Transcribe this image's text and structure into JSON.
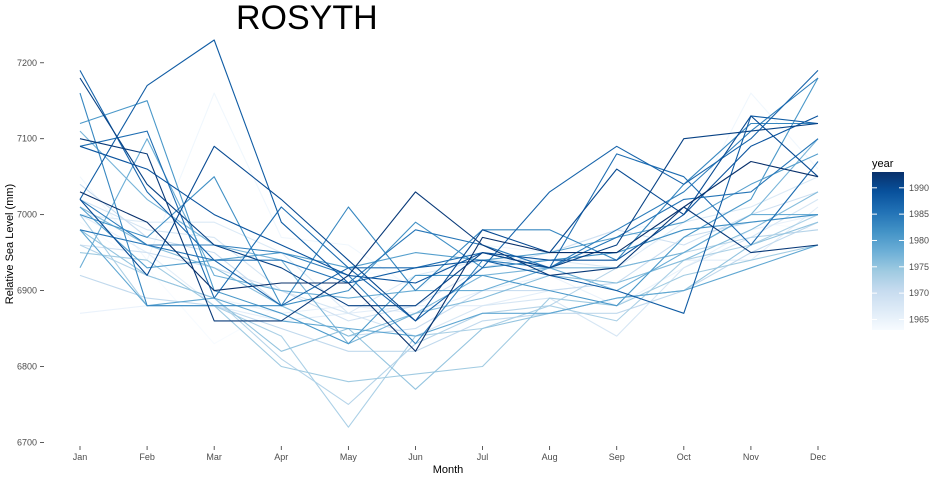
{
  "chart_data": {
    "type": "line",
    "title": "ROSYTH",
    "xlabel": "Month",
    "ylabel": "Relative Sea Level (mm)",
    "categories": [
      "Jan",
      "Feb",
      "Mar",
      "Apr",
      "May",
      "Jun",
      "Jul",
      "Aug",
      "Sep",
      "Oct",
      "Nov",
      "Dec"
    ],
    "yticks": [
      6700,
      6800,
      6900,
      7000,
      7100,
      7200
    ],
    "ylim": [
      6690,
      7230
    ],
    "grid": false,
    "legend": {
      "title": "year",
      "position": "right",
      "type": "continuous-colorbar",
      "ticks": [
        1965,
        1970,
        1975,
        1980,
        1985,
        1990
      ],
      "range": [
        1963,
        1993
      ],
      "low_color": "#f7fbff",
      "high_color": "#08306b"
    },
    "colors": [
      "#f7fbff",
      "#deebf7",
      "#c6dbef",
      "#9ecae1",
      "#6baed6",
      "#4292c6",
      "#2171b5",
      "#08519c",
      "#08306b"
    ],
    "series": [
      {
        "year": 1963,
        "values": [
          6990,
          6930,
          6830,
          6880,
          6930,
          6910,
          6940,
          6930,
          6940,
          6980,
          6990,
          6980
        ]
      },
      {
        "year": 1964,
        "values": [
          7050,
          6940,
          7160,
          6970,
          6960,
          6900,
          6960,
          6950,
          6980,
          6990,
          7160,
          7060
        ]
      },
      {
        "year": 1965,
        "values": [
          6870,
          6880,
          6890,
          6870,
          6880,
          6870,
          6900,
          6920,
          6880,
          6930,
          6980,
          7000
        ]
      },
      {
        "year": 1966,
        "values": [
          7000,
          6950,
          6880,
          6860,
          6870,
          6880,
          6880,
          6900,
          6910,
          6940,
          6940,
          7010
        ]
      },
      {
        "year": 1967,
        "values": [
          7000,
          6990,
          6990,
          6950,
          6870,
          6920,
          6940,
          6940,
          6930,
          6990,
          7010,
          7050
        ]
      },
      {
        "year": 1968,
        "values": [
          7020,
          6980,
          6970,
          6900,
          6870,
          6840,
          6880,
          6890,
          6840,
          6930,
          6970,
          7020
        ]
      },
      {
        "year": 1969,
        "values": [
          6960,
          6950,
          6930,
          6900,
          6860,
          6880,
          6930,
          6950,
          6980,
          6960,
          7000,
          7030
        ]
      },
      {
        "year": 1970,
        "values": [
          7040,
          6970,
          6950,
          6880,
          6840,
          6850,
          6900,
          6900,
          6910,
          6970,
          6990,
          7000
        ]
      },
      {
        "year": 1971,
        "values": [
          6920,
          6890,
          6880,
          6850,
          6820,
          6820,
          6860,
          6870,
          6870,
          6900,
          6950,
          6990
        ]
      },
      {
        "year": 1972,
        "values": [
          6960,
          6920,
          6890,
          6810,
          6750,
          6830,
          6870,
          6880,
          6930,
          6950,
          6970,
          6980
        ]
      },
      {
        "year": 1973,
        "values": [
          7000,
          6880,
          6880,
          6840,
          6720,
          6840,
          6850,
          6880,
          6860,
          6940,
          6960,
          7000
        ]
      },
      {
        "year": 1974,
        "values": [
          6950,
          6940,
          6880,
          6800,
          6780,
          6790,
          6800,
          6890,
          6880,
          6920,
          6940,
          6960
        ]
      },
      {
        "year": 1975,
        "values": [
          6980,
          6920,
          6890,
          6820,
          6850,
          6770,
          6850,
          6870,
          6890,
          6900,
          6960,
          6990
        ]
      },
      {
        "year": 1976,
        "values": [
          7010,
          6960,
          6930,
          6880,
          6840,
          6870,
          6890,
          6920,
          6910,
          6940,
          6980,
          7030
        ]
      },
      {
        "year": 1977,
        "values": [
          7110,
          7020,
          6960,
          6940,
          6830,
          6870,
          6920,
          6930,
          6930,
          6950,
          7000,
          7100
        ]
      },
      {
        "year": 1978,
        "values": [
          6930,
          7100,
          6920,
          6900,
          6890,
          6900,
          6900,
          6930,
          6900,
          6950,
          7000,
          7000
        ]
      },
      {
        "year": 1979,
        "values": [
          6980,
          6880,
          6890,
          6860,
          6850,
          6840,
          6870,
          6870,
          6890,
          6900,
          6930,
          6960
        ]
      },
      {
        "year": 1980,
        "values": [
          7010,
          6930,
          6940,
          6950,
          6930,
          6950,
          6940,
          6950,
          6970,
          6990,
          7040,
          7080
        ]
      },
      {
        "year": 1981,
        "values": [
          7120,
          7150,
          6900,
          6870,
          6830,
          6920,
          6920,
          6900,
          6880,
          6970,
          7020,
          7180
        ]
      },
      {
        "year": 1982,
        "values": [
          7000,
          6970,
          7050,
          6880,
          6900,
          6990,
          6930,
          6940,
          6950,
          6980,
          6990,
          7000
        ]
      },
      {
        "year": 1983,
        "values": [
          7160,
          6880,
          6880,
          6880,
          7010,
          6900,
          6980,
          6980,
          6940,
          7040,
          7120,
          7120
        ]
      },
      {
        "year": 1984,
        "values": [
          7020,
          6960,
          6960,
          6950,
          6920,
          6830,
          6940,
          6930,
          6980,
          7030,
          7110,
          7180
        ]
      },
      {
        "year": 1985,
        "values": [
          6980,
          6960,
          6940,
          6940,
          6910,
          6980,
          6960,
          6930,
          6970,
          7020,
          7030,
          7100
        ]
      },
      {
        "year": 1986,
        "values": [
          7090,
          7110,
          6890,
          7010,
          6930,
          6930,
          6950,
          6930,
          7080,
          7050,
          6960,
          7070
        ]
      },
      {
        "year": 1987,
        "values": [
          7190,
          7030,
          6940,
          6880,
          6930,
          6860,
          6930,
          7030,
          7090,
          7040,
          7100,
          7190
        ]
      },
      {
        "year": 1988,
        "values": [
          7020,
          7170,
          7230,
          6990,
          6910,
          6930,
          6940,
          6920,
          6900,
          6870,
          7130,
          7120
        ]
      },
      {
        "year": 1989,
        "values": [
          7090,
          7060,
          7000,
          6960,
          6920,
          6910,
          6950,
          6940,
          6940,
          7000,
          7090,
          7130
        ]
      },
      {
        "year": 1990,
        "values": [
          7020,
          6920,
          7090,
          7020,
          6940,
          6860,
          6980,
          6950,
          7060,
          7000,
          7130,
          7050
        ]
      },
      {
        "year": 1991,
        "values": [
          7180,
          7040,
          6960,
          6930,
          6880,
          6880,
          6950,
          6930,
          6960,
          7100,
          7110,
          7120
        ]
      },
      {
        "year": 1992,
        "values": [
          7100,
          7080,
          6860,
          6860,
          6920,
          7030,
          6960,
          6920,
          6930,
          7010,
          6950,
          6960
        ]
      },
      {
        "year": 1993,
        "values": [
          7030,
          6990,
          6900,
          6910,
          6910,
          6820,
          6970,
          6950,
          6950,
          7010,
          7070,
          7050
        ]
      }
    ]
  }
}
